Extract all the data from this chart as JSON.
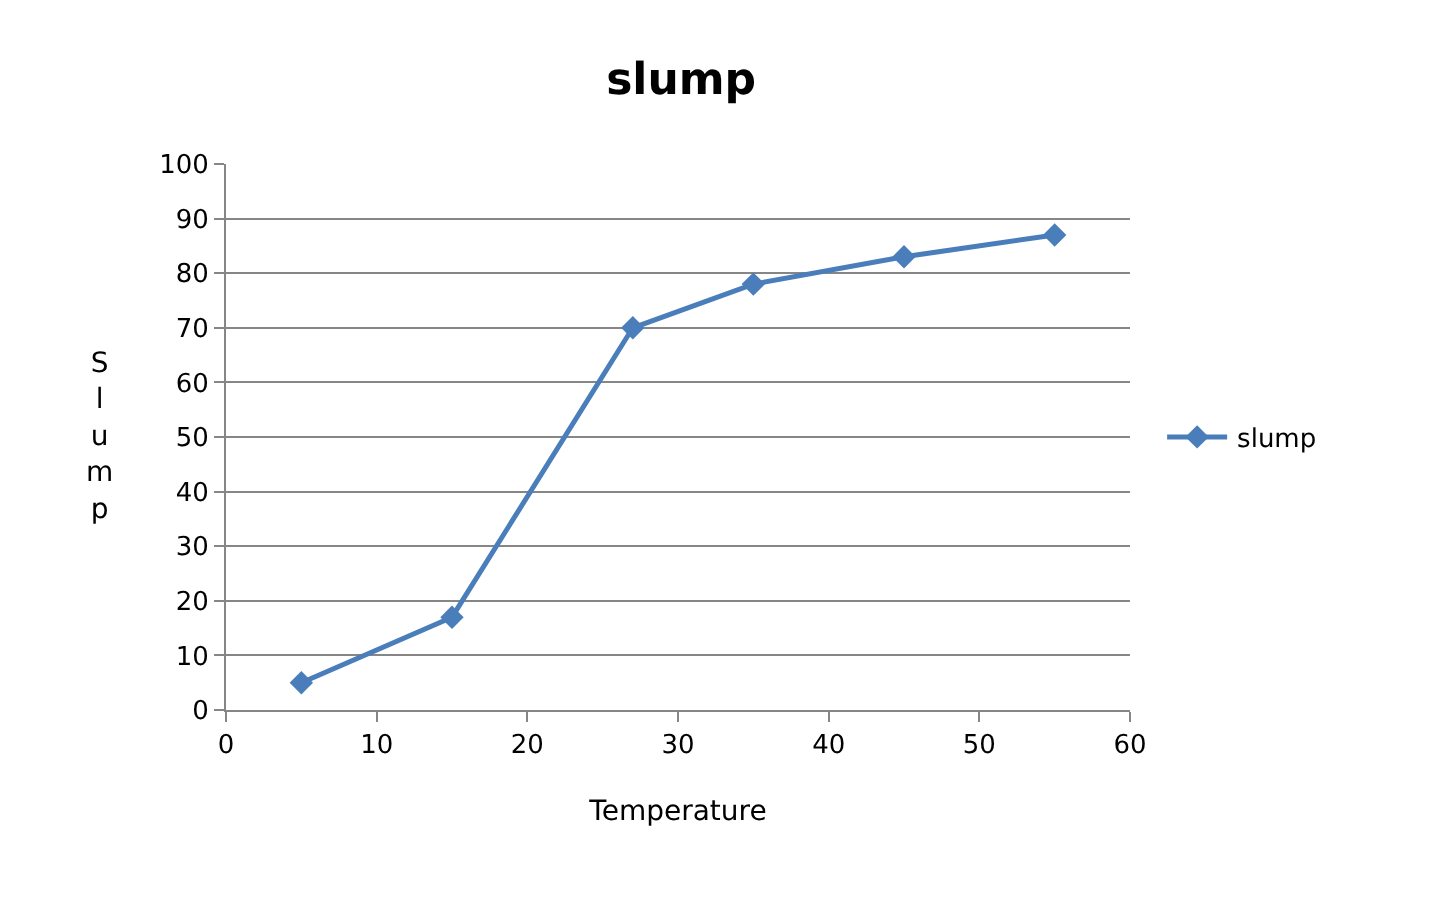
{
  "chart_data": {
    "type": "line",
    "title": "slump",
    "xlabel": "Temperature",
    "ylabel": "Slump",
    "x": [
      5,
      15,
      27,
      35,
      45,
      55
    ],
    "series": [
      {
        "name": "slump",
        "color": "#4a7ebb",
        "values": [
          5,
          17,
          70,
          78,
          83,
          87
        ]
      }
    ],
    "xlim": [
      0,
      60
    ],
    "xticks": [
      0,
      10,
      20,
      30,
      40,
      50,
      60
    ],
    "ylim": [
      0,
      100
    ],
    "yticks": [
      0,
      10,
      20,
      30,
      40,
      50,
      60,
      70,
      80,
      90,
      100
    ],
    "grid": "y",
    "legend": "right",
    "marker": "diamond",
    "line_style": "solid"
  }
}
